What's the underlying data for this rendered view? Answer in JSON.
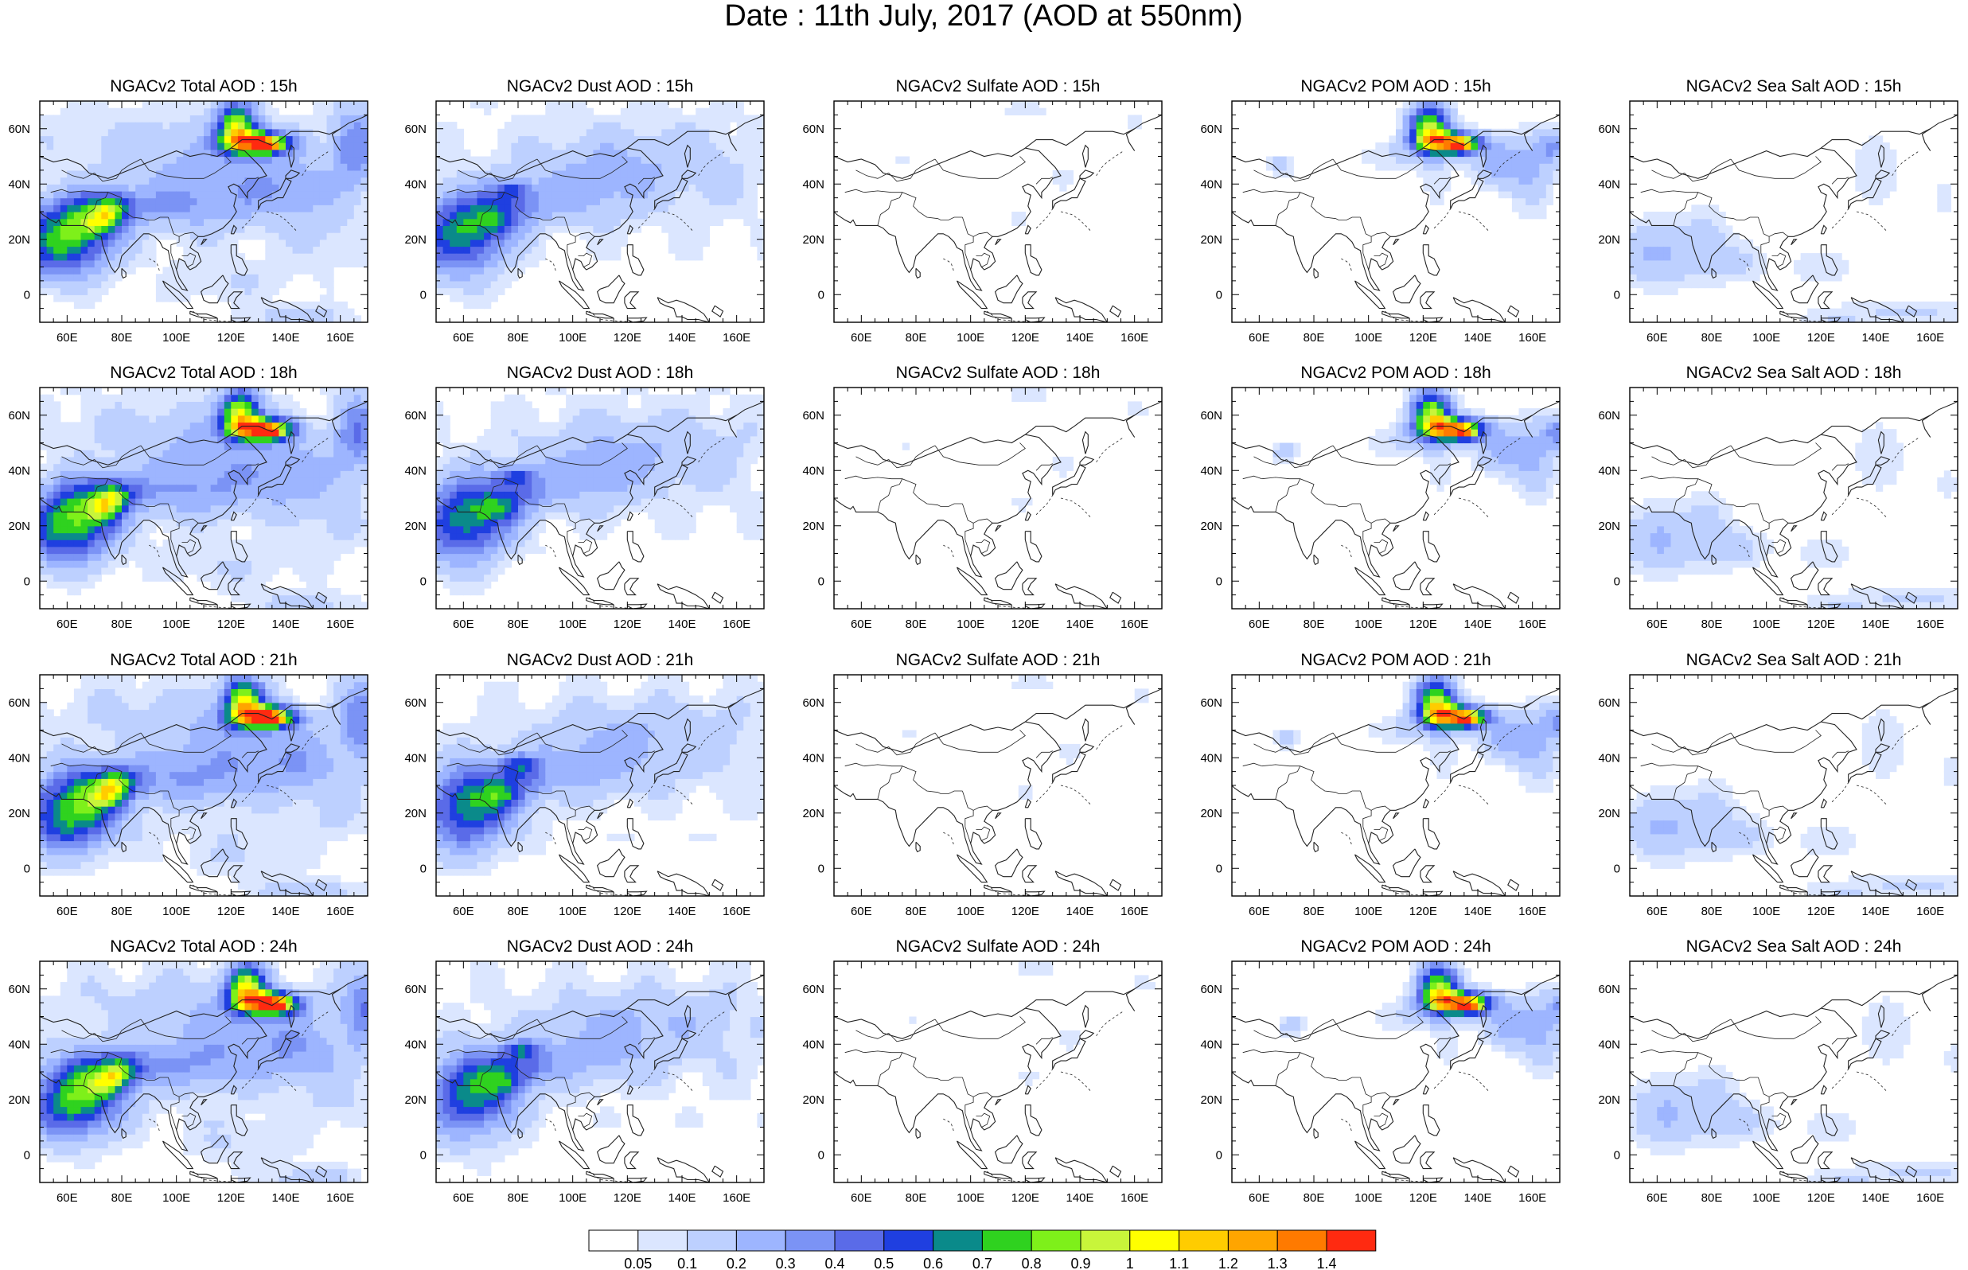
{
  "page": {
    "title": "Date : 11th July, 2017 (AOD at 550nm)"
  },
  "axes": {
    "lon_ticks": [
      "60E",
      "80E",
      "100E",
      "120E",
      "140E",
      "160E"
    ],
    "lat_ticks": [
      "60N",
      "40N",
      "20N",
      "0"
    ]
  },
  "panels": [
    [
      "NGACv2 Total AOD : 15h",
      "NGACv2 Dust AOD : 15h",
      "NGACv2 Sulfate AOD : 15h",
      "NGACv2 POM AOD : 15h",
      "NGACv2 Sea Salt AOD : 15h"
    ],
    [
      "NGACv2 Total AOD : 18h",
      "NGACv2 Dust AOD : 18h",
      "NGACv2 Sulfate AOD : 18h",
      "NGACv2 POM AOD : 18h",
      "NGACv2 Sea Salt AOD : 18h"
    ],
    [
      "NGACv2 Total AOD : 21h",
      "NGACv2 Dust AOD : 21h",
      "NGACv2 Sulfate AOD : 21h",
      "NGACv2 POM AOD : 21h",
      "NGACv2 Sea Salt AOD : 21h"
    ],
    [
      "NGACv2 Total AOD : 24h",
      "NGACv2 Dust AOD : 24h",
      "NGACv2 Sulfate AOD : 24h",
      "NGACv2 POM AOD : 24h",
      "NGACv2 Sea Salt  AOD : 24h"
    ]
  ],
  "colorbar": {
    "labels": [
      "0.05",
      "0.1",
      "0.2",
      "0.3",
      "0.4",
      "0.5",
      "0.6",
      "0.7",
      "0.8",
      "0.9",
      "1",
      "1.1",
      "1.2",
      "1.3",
      "1.4"
    ],
    "colors": [
      "#ffffff",
      "#dbe6ff",
      "#bdd0ff",
      "#9db5ff",
      "#7b93f5",
      "#5a6be8",
      "#1f3fe0",
      "#0a8a8a",
      "#2fd21f",
      "#7ef01a",
      "#c8f53a",
      "#ffff00",
      "#ffcc00",
      "#ffa500",
      "#ff7a00",
      "#ff2a10"
    ]
  }
}
